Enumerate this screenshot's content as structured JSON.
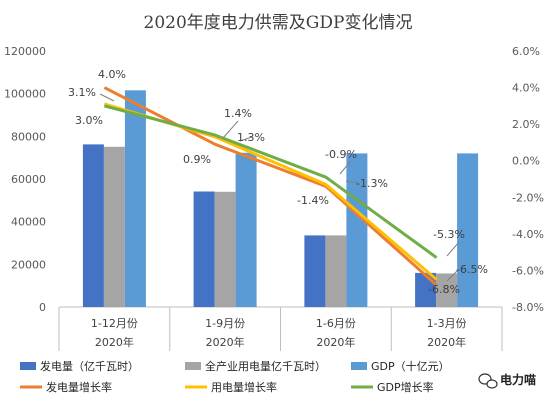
{
  "chart_data": {
    "type": "bar",
    "title": "2020年度电力供需及GDP变化情况",
    "categories": [
      "1-12月份",
      "1-9月份",
      "1-6月份",
      "1-3月份"
    ],
    "group_label": "2020年",
    "left_axis": {
      "ylim": [
        0,
        120000
      ],
      "ticks": [
        "0",
        "20000",
        "40000",
        "60000",
        "80000",
        "100000",
        "120000"
      ]
    },
    "right_axis": {
      "ylim": [
        -8.0,
        6.0
      ],
      "ticks": [
        "-8.0%",
        "-6.0%",
        "-4.0%",
        "-2.0%",
        "0.0%",
        "2.0%",
        "4.0%",
        "6.0%"
      ]
    },
    "bar_series": [
      {
        "name": "发电量（亿千瓦时）",
        "color": "#4472C4",
        "values": [
          76236,
          54158,
          33555,
          15999
        ]
      },
      {
        "name": "全产业用电量亿千瓦时）",
        "color": "#A5A5A5",
        "values": [
          75110,
          54000,
          33547,
          15698
        ]
      },
      {
        "name": "GDP（十亿元）",
        "color": "#5B9BD5",
        "values": [
          101599,
          72270,
          72000,
          72000
        ]
      }
    ],
    "line_series": [
      {
        "name": "发电量增长率",
        "color": "#ED7D31",
        "values": [
          4.0,
          0.9,
          -1.4,
          -6.8
        ],
        "labels": [
          "4.0%",
          "0.9%",
          "-1.4%",
          "-6.8%"
        ]
      },
      {
        "name": "用电量增长率",
        "color": "#FFC000",
        "values": [
          3.1,
          1.3,
          -1.3,
          -6.5
        ],
        "labels": [
          "3.1%",
          "1.3%",
          "-1.3%",
          "-6.5%"
        ]
      },
      {
        "name": "GDP增长率",
        "color": "#70AD47",
        "values": [
          3.0,
          1.4,
          -0.9,
          -5.3
        ],
        "labels": [
          "3.0%",
          "1.4%",
          "-0.9%",
          "-5.3%"
        ]
      }
    ],
    "legend_position": "bottom",
    "grid": false
  },
  "watermark": {
    "text": "电力喵",
    "icon": "wechat-icon"
  }
}
